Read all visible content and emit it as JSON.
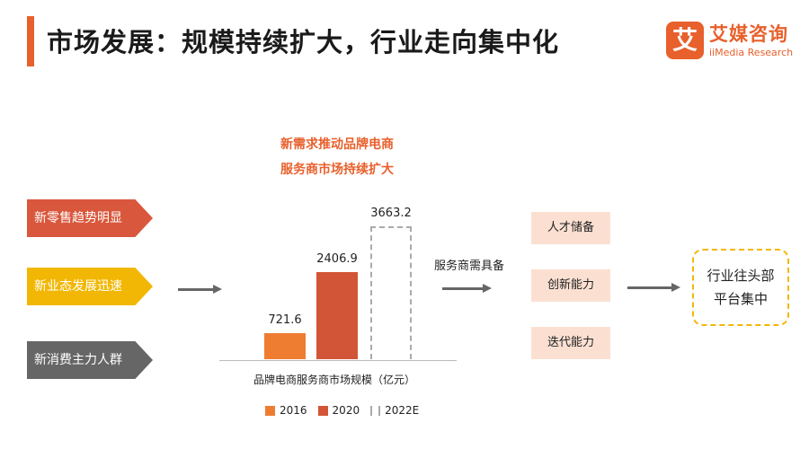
{
  "title": "市场发展：规模持续扩大，行业走向集中化",
  "logo": {
    "mark": "艾",
    "cn": "艾媒咨询",
    "en": "iiMedia Research"
  },
  "headline": [
    "新需求推动品牌电商",
    "服务商市场持续扩大"
  ],
  "trends": [
    {
      "label": "新零售趋势明显",
      "color": "#d9573c"
    },
    {
      "label": "新业态发展迅速",
      "color": "#f2b705"
    },
    {
      "label": "新消费主力人群",
      "color": "#666666"
    }
  ],
  "chart_data": {
    "type": "bar",
    "categories": [
      "2016",
      "2020",
      "2022E"
    ],
    "values": [
      721.6,
      2406.9,
      3663.2
    ],
    "value_labels": [
      "721.6",
      "2406.9",
      "3663.2"
    ],
    "colors": [
      "#ee7d31",
      "#d35537",
      "#aaaaaa"
    ],
    "styles": [
      "solid",
      "solid",
      "dashed"
    ],
    "caption": "品牌电商服务商市场规模（亿元）",
    "legend": [
      "2016",
      "2020",
      "2022E"
    ]
  },
  "requirement_label": "服务商需具备",
  "capabilities": [
    "人才储备",
    "创新能力",
    "迭代能力"
  ],
  "result": [
    "行业往头部",
    "平台集中"
  ]
}
